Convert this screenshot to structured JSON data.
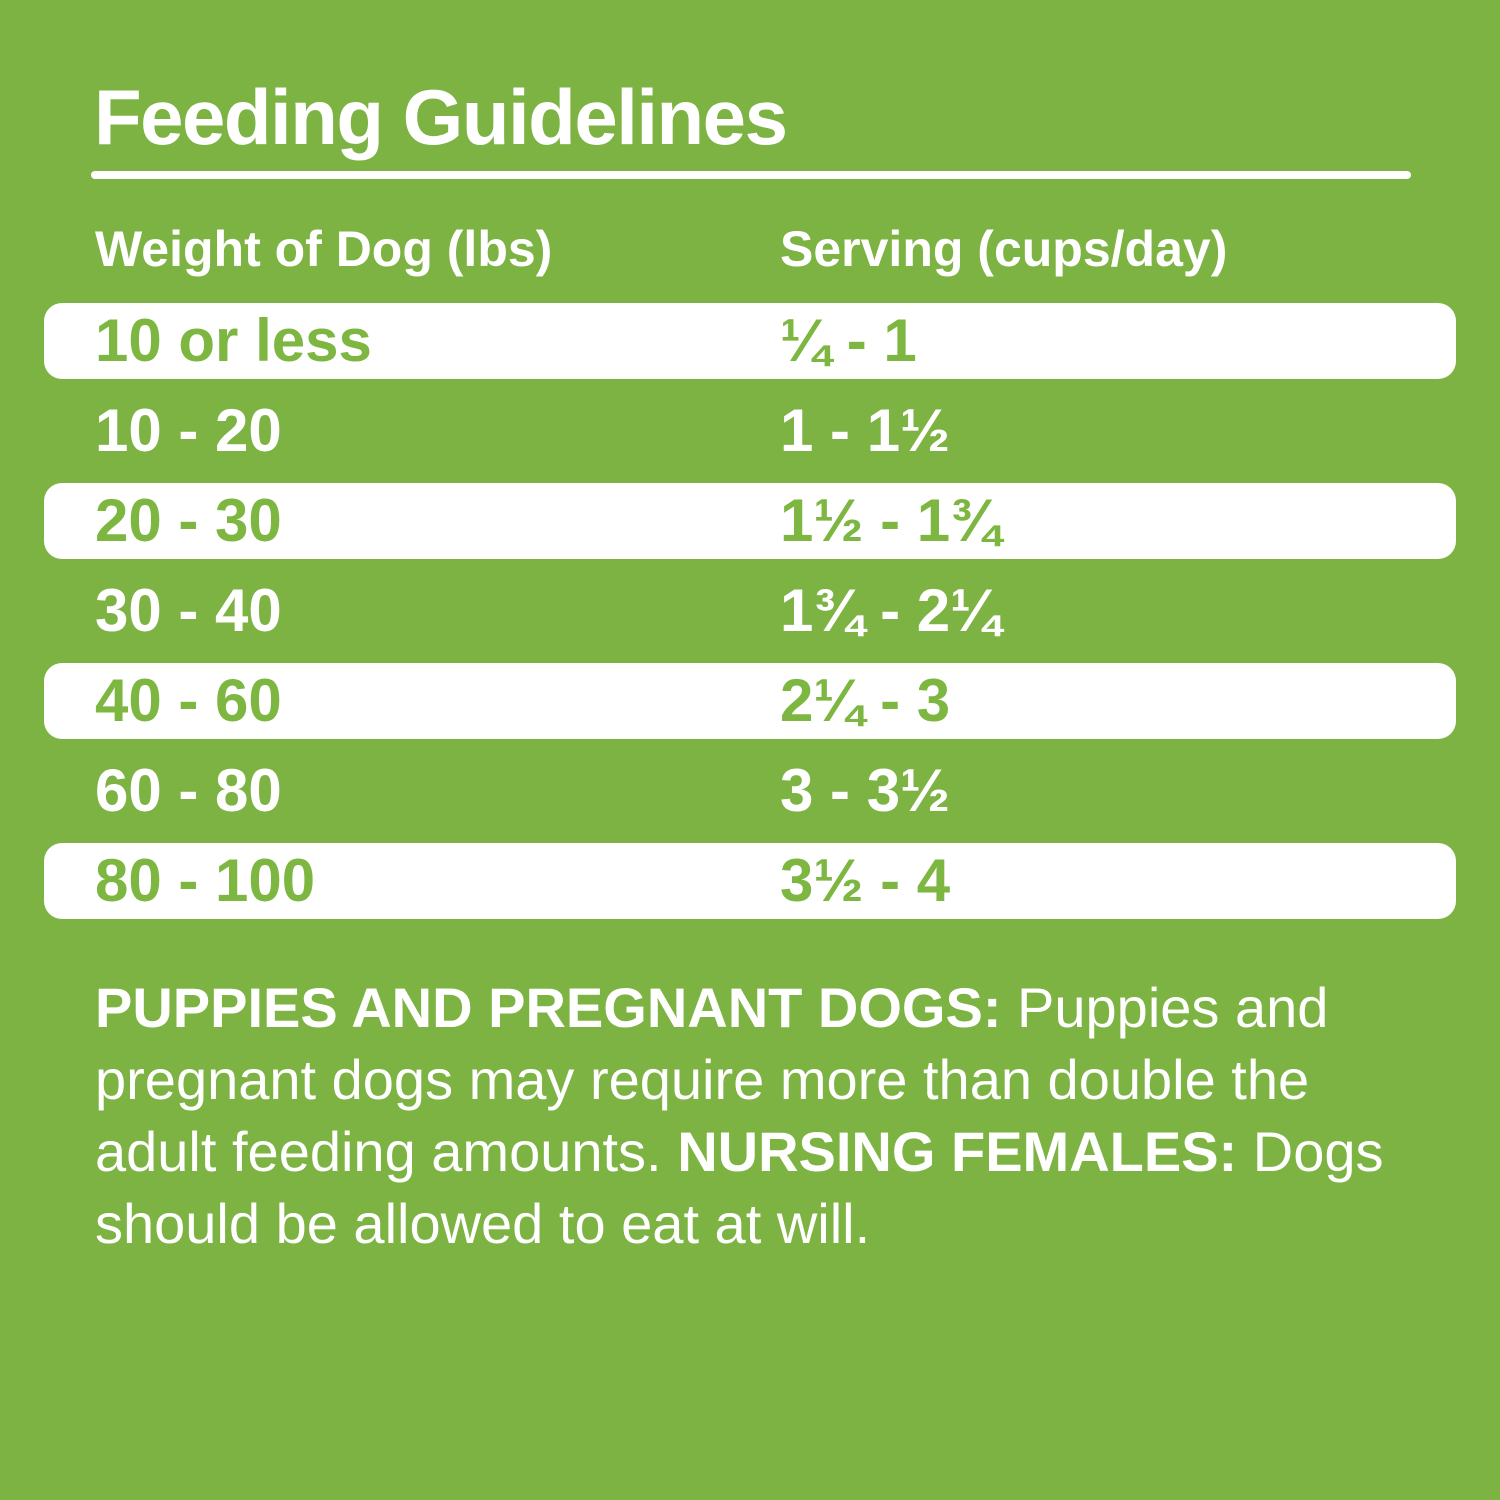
{
  "title": "Feeding Guidelines",
  "table": {
    "columns": [
      {
        "label": "Weight of Dog (lbs)"
      },
      {
        "label": "Serving (cups/day)"
      }
    ],
    "rows": [
      {
        "weight": "10 or less",
        "serving": "¼ - 1"
      },
      {
        "weight": "10 - 20",
        "serving": "1 - 1½"
      },
      {
        "weight": "20 - 30",
        "serving": "1½ - 1¾"
      },
      {
        "weight": "30 - 40",
        "serving": "1¾ - 2¼"
      },
      {
        "weight": "40 - 60",
        "serving": "2¼ - 3"
      },
      {
        "weight": "60 - 80",
        "serving": "3 - 3½"
      },
      {
        "weight": "80 - 100",
        "serving": "3½ - 4"
      }
    ]
  },
  "note": {
    "puppies_label": "PUPPIES AND PREGNANT DOGS:",
    "puppies_text": " Puppies and pregnant dogs may require more than double the adult feeding amounts. ",
    "nursing_label": "NURSING FEMALES:",
    "nursing_text": " Dogs should be allowed to eat at will."
  },
  "colors": {
    "background": "#7CB342",
    "row_highlight_bg": "#FFFFFF",
    "row_highlight_text": "#7DB742",
    "text": "#FFFFFF"
  }
}
